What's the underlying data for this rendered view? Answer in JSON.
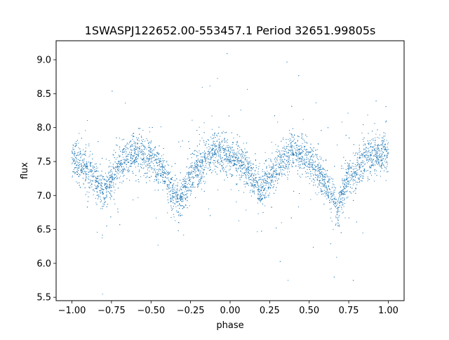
{
  "chart_data": {
    "type": "scatter",
    "title": "1SWASPJ122652.00-553457.1 Period 32651.99805s",
    "xlabel": "phase",
    "ylabel": "flux",
    "xlim": [
      -1.1,
      1.1
    ],
    "ylim": [
      5.45,
      9.28
    ],
    "xticks": [
      -1.0,
      -0.75,
      -0.5,
      -0.25,
      0.0,
      0.25,
      0.5,
      0.75,
      1.0
    ],
    "xtick_labels": [
      "−1.00",
      "−0.75",
      "−0.50",
      "−0.25",
      "0.00",
      "0.25",
      "0.50",
      "0.75",
      "1.00"
    ],
    "yticks": [
      5.5,
      6.0,
      6.5,
      7.0,
      7.5,
      8.0,
      8.5,
      9.0
    ],
    "ytick_labels": [
      "5.5",
      "6.0",
      "6.5",
      "7.0",
      "7.5",
      "8.0",
      "8.5",
      "9.0"
    ],
    "grid": false,
    "legend": "none",
    "point_color": "#1f77b4",
    "series": [
      {
        "values_description": "folded light curve, phase vs flux",
        "curve_profile": {
          "phase": [
            -1.0,
            -0.9,
            -0.8,
            -0.7,
            -0.6,
            -0.5,
            -0.4,
            -0.32,
            -0.25,
            -0.1,
            0.0,
            0.1,
            0.2,
            0.3,
            0.4,
            0.5,
            0.6,
            0.68,
            0.75,
            0.9,
            1.0
          ],
          "flux": [
            7.55,
            7.35,
            7.05,
            7.45,
            7.65,
            7.55,
            7.25,
            6.85,
            7.3,
            7.65,
            7.6,
            7.4,
            7.05,
            7.45,
            7.65,
            7.55,
            7.2,
            6.8,
            7.3,
            7.6,
            7.6
          ]
        }
      }
    ]
  }
}
